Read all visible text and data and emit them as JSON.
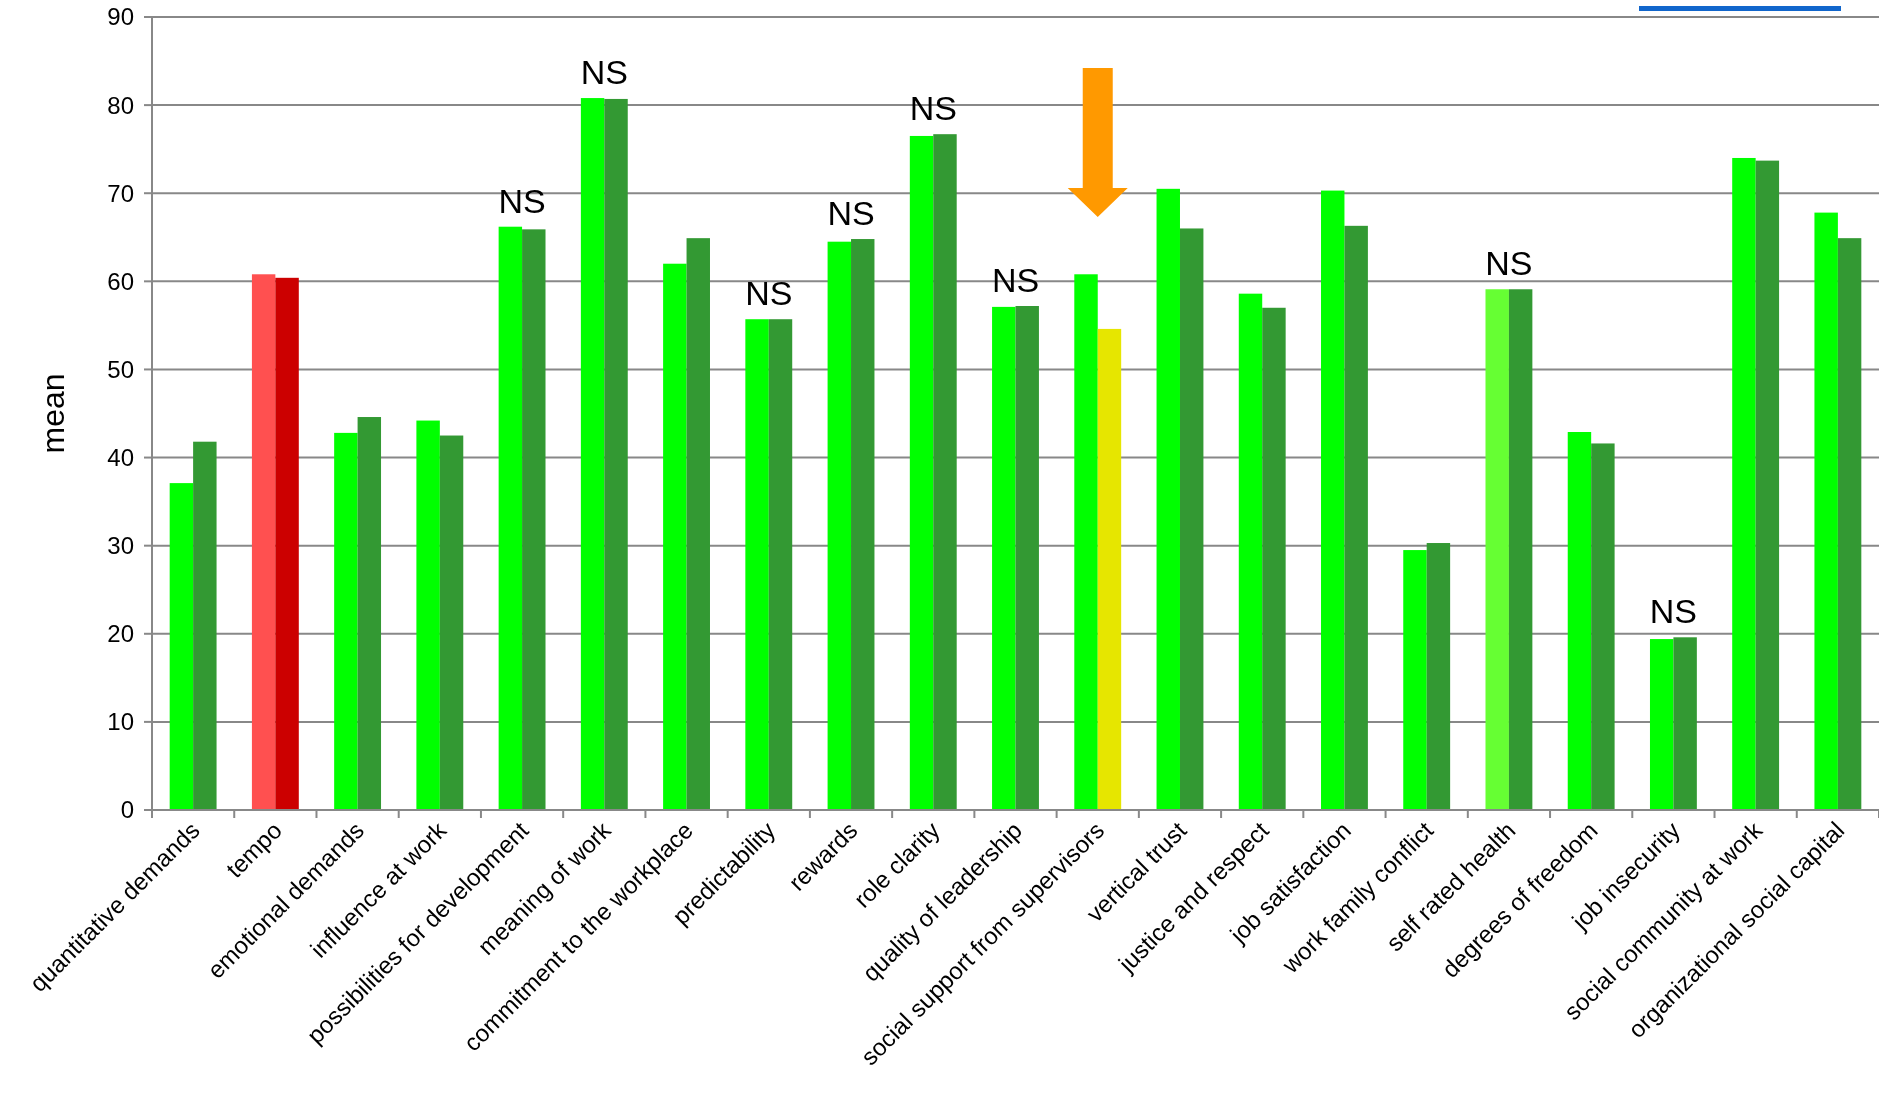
{
  "chart_data": {
    "type": "bar",
    "ylabel": "mean",
    "categories": [
      "quantitative demands",
      "tempo",
      "emotional demands",
      "influence at work",
      "possibilities for development",
      "meaning of work",
      "commitment to the workplace",
      "predictability",
      "rewards",
      "role clarity",
      "quality of leadership",
      "social support from supervisors",
      "vertical trust",
      "justice and respect",
      "job satisfaction",
      "work family conflict",
      "self rated health",
      "degrees of freedom",
      "job insecurity",
      "social community at work",
      "organizational social capital"
    ],
    "series": [
      {
        "colors": [
          "#00ff00",
          "#ff5050",
          "#00ff00",
          "#00ff00",
          "#00ff00",
          "#00ff00",
          "#00ff00",
          "#00ff00",
          "#00ff00",
          "#00ff00",
          "#00ff00",
          "#00ff00",
          "#00ff00",
          "#00ff00",
          "#00ff00",
          "#00ff00",
          "#66ff33",
          "#00ff00",
          "#00ff00",
          "#00ff00",
          "#00ff00"
        ],
        "values": [
          37.1,
          60.8,
          42.8,
          44.2,
          66.2,
          80.8,
          62.0,
          55.7,
          64.5,
          76.5,
          57.1,
          60.8,
          70.5,
          58.6,
          70.3,
          29.5,
          59.1,
          42.9,
          19.4,
          74.0,
          67.8
        ]
      },
      {
        "colors": [
          "#339933",
          "#cc0000",
          "#339933",
          "#339933",
          "#339933",
          "#339933",
          "#339933",
          "#339933",
          "#339933",
          "#339933",
          "#339933",
          "#e6e600",
          "#339933",
          "#339933",
          "#339933",
          "#339933",
          "#339933",
          "#339933",
          "#339933",
          "#339933",
          "#339933"
        ],
        "values": [
          41.8,
          60.4,
          44.6,
          42.5,
          65.9,
          80.7,
          64.9,
          55.7,
          64.8,
          76.7,
          57.2,
          54.6,
          66.0,
          57.0,
          66.3,
          30.3,
          59.1,
          41.6,
          19.6,
          73.7,
          64.9
        ]
      }
    ],
    "ylim": [
      0,
      90
    ],
    "yticks": [
      0,
      10,
      20,
      30,
      40,
      50,
      60,
      70,
      80,
      90
    ],
    "grid": "y",
    "annotations": [
      {
        "text": "NS",
        "x": "possibilities for development",
        "y": 66.2
      },
      {
        "text": "NS",
        "x": "meaning of work",
        "y": 80.8
      },
      {
        "text": "NS",
        "x": "predictability",
        "y": 55.7
      },
      {
        "text": "NS",
        "x": "rewards",
        "y": 64.8
      },
      {
        "text": "NS",
        "x": "role clarity",
        "y": 76.7
      },
      {
        "text": "NS",
        "x": "quality of leadership",
        "y": 57.2
      },
      {
        "text": "NS",
        "x": "self rated health",
        "y": 59.1
      },
      {
        "text": "NS",
        "x": "job insecurity",
        "y": 19.6
      }
    ]
  }
}
